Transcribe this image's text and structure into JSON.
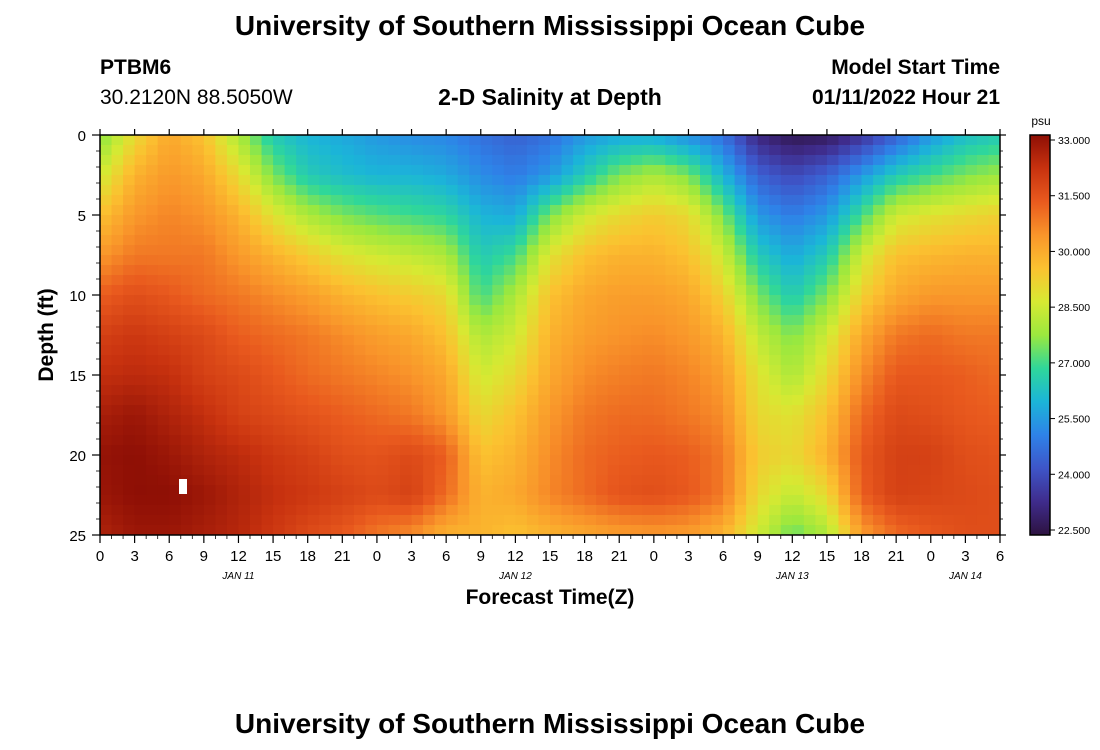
{
  "header": {
    "title": "University of Southern Mississippi Ocean Cube",
    "station_id": "PTBM6",
    "coords": "30.2120N  88.5050W",
    "subtitle": "2-D Salinity at Depth",
    "model_label": "Model Start Time",
    "model_time": "01/11/2022 Hour 21",
    "footer_title": "University of Southern Mississippi Ocean Cube"
  },
  "chart_data": {
    "type": "heatmap",
    "title": "2-D Salinity at Depth",
    "xlabel": "Forecast Time(Z)",
    "ylabel": "Depth (ft)",
    "x_range_hours": [
      0,
      78
    ],
    "x_ticks": [
      {
        "h": 0,
        "label": "0"
      },
      {
        "h": 3,
        "label": "3"
      },
      {
        "h": 6,
        "label": "6"
      },
      {
        "h": 9,
        "label": "9"
      },
      {
        "h": 12,
        "label": "12"
      },
      {
        "h": 15,
        "label": "15"
      },
      {
        "h": 18,
        "label": "18"
      },
      {
        "h": 21,
        "label": "21"
      },
      {
        "h": 24,
        "label": "0"
      },
      {
        "h": 27,
        "label": "3"
      },
      {
        "h": 30,
        "label": "6"
      },
      {
        "h": 33,
        "label": "9"
      },
      {
        "h": 36,
        "label": "12"
      },
      {
        "h": 39,
        "label": "15"
      },
      {
        "h": 42,
        "label": "18"
      },
      {
        "h": 45,
        "label": "21"
      },
      {
        "h": 48,
        "label": "0"
      },
      {
        "h": 51,
        "label": "3"
      },
      {
        "h": 54,
        "label": "6"
      },
      {
        "h": 57,
        "label": "9"
      },
      {
        "h": 60,
        "label": "12"
      },
      {
        "h": 63,
        "label": "15"
      },
      {
        "h": 66,
        "label": "18"
      },
      {
        "h": 69,
        "label": "21"
      },
      {
        "h": 72,
        "label": "0"
      },
      {
        "h": 75,
        "label": "3"
      },
      {
        "h": 78,
        "label": "6"
      }
    ],
    "date_labels": [
      {
        "h": 12,
        "label": "JAN 11"
      },
      {
        "h": 36,
        "label": "JAN 12"
      },
      {
        "h": 60,
        "label": "JAN 13"
      },
      {
        "h": 75,
        "label": "JAN 14"
      }
    ],
    "y_range_ft": [
      0,
      25
    ],
    "y_ticks": [
      0,
      5,
      10,
      15,
      20,
      25
    ],
    "colorbar": {
      "unit": "psu",
      "min": 22.5,
      "max": 33.0,
      "ticks": [
        "33.000",
        "31.500",
        "30.000",
        "28.500",
        "27.000",
        "25.500",
        "24.000",
        "22.500"
      ],
      "stops": [
        "#2d1240",
        "#3f2c8c",
        "#3e55c8",
        "#2e82e8",
        "#1bb5d8",
        "#2fd79a",
        "#9be83e",
        "#d7e932",
        "#fbc230",
        "#f9952a",
        "#e95a1e",
        "#c8320f",
        "#8e0f05"
      ]
    },
    "salinity_keypoints": {
      "times_h": [
        0,
        3,
        6,
        9,
        12,
        15,
        18,
        21,
        24,
        27,
        30,
        33,
        36,
        39,
        42,
        45,
        48,
        51,
        54,
        57,
        60,
        63,
        66,
        69,
        72,
        75,
        78
      ],
      "depths_ft": [
        0,
        2.5,
        5,
        7.5,
        10,
        12.5,
        15,
        17.5,
        20,
        22.5,
        25
      ],
      "rows_psu": [
        [
          27.5,
          29.0,
          30.0,
          29.5,
          28.0,
          26.5,
          26.0,
          25.8,
          25.5,
          25.3,
          25.2,
          24.8,
          24.5,
          24.8,
          25.5,
          25.8,
          25.8,
          25.3,
          24.8,
          23.2,
          22.7,
          22.8,
          23.5,
          24.5,
          25.5,
          26.2,
          26.5
        ],
        [
          28.5,
          29.8,
          30.3,
          30.0,
          29.0,
          27.5,
          26.5,
          26.2,
          26.0,
          26.0,
          25.8,
          25.3,
          25.0,
          25.5,
          26.5,
          27.5,
          28.0,
          27.5,
          26.0,
          24.5,
          24.0,
          24.5,
          25.5,
          26.5,
          27.0,
          27.5,
          27.8
        ],
        [
          29.5,
          30.3,
          30.6,
          30.4,
          29.8,
          28.8,
          28.0,
          27.5,
          27.2,
          27.0,
          26.8,
          26.0,
          25.8,
          27.5,
          28.5,
          29.0,
          29.3,
          29.0,
          27.5,
          25.5,
          25.0,
          25.5,
          27.0,
          28.5,
          28.8,
          29.0,
          29.2
        ],
        [
          30.3,
          30.8,
          30.8,
          30.8,
          30.3,
          29.8,
          29.3,
          28.8,
          28.5,
          28.3,
          28.0,
          26.5,
          27.0,
          28.8,
          29.5,
          29.8,
          29.8,
          29.5,
          28.5,
          26.5,
          25.8,
          26.5,
          28.5,
          29.5,
          29.7,
          29.8,
          29.8
        ],
        [
          31.2,
          31.5,
          31.3,
          31.0,
          30.8,
          30.5,
          30.2,
          29.8,
          29.5,
          29.3,
          29.0,
          27.0,
          28.0,
          29.5,
          30.0,
          30.2,
          30.2,
          30.0,
          29.2,
          27.5,
          26.5,
          27.5,
          29.2,
          30.0,
          30.3,
          30.3,
          30.3
        ],
        [
          31.8,
          32.0,
          31.8,
          31.6,
          31.2,
          31.0,
          30.8,
          30.5,
          30.2,
          30.0,
          29.5,
          28.0,
          28.5,
          29.8,
          30.2,
          30.4,
          30.5,
          30.3,
          29.8,
          28.3,
          27.5,
          28.5,
          30.0,
          30.8,
          31.0,
          30.8,
          30.8
        ],
        [
          32.2,
          32.3,
          32.2,
          31.8,
          31.6,
          31.3,
          31.0,
          30.8,
          30.6,
          30.4,
          30.0,
          28.5,
          29.0,
          30.0,
          30.5,
          30.7,
          30.8,
          30.6,
          30.2,
          28.8,
          28.0,
          29.0,
          30.5,
          31.3,
          31.3,
          31.2,
          31.0
        ],
        [
          32.6,
          32.8,
          32.5,
          32.2,
          31.8,
          31.6,
          31.4,
          31.2,
          31.0,
          30.8,
          30.3,
          29.0,
          29.5,
          30.3,
          30.8,
          31.0,
          31.0,
          30.8,
          30.5,
          29.0,
          28.8,
          29.5,
          31.0,
          31.6,
          31.5,
          31.3,
          31.2
        ],
        [
          32.9,
          33.0,
          32.8,
          32.5,
          32.3,
          32.0,
          31.8,
          31.5,
          31.4,
          31.6,
          31.2,
          29.5,
          29.8,
          30.5,
          31.0,
          31.2,
          31.3,
          31.2,
          30.8,
          29.3,
          29.0,
          29.8,
          31.3,
          31.8,
          31.8,
          31.5,
          31.4
        ],
        [
          32.8,
          33.0,
          33.0,
          32.8,
          32.5,
          32.2,
          32.0,
          31.8,
          31.6,
          31.8,
          31.0,
          29.8,
          30.0,
          30.6,
          31.0,
          31.4,
          31.5,
          31.3,
          30.8,
          29.0,
          28.3,
          29.0,
          31.2,
          31.8,
          31.7,
          31.6,
          31.5
        ],
        [
          32.5,
          32.8,
          32.8,
          32.6,
          32.4,
          32.0,
          31.6,
          31.3,
          30.8,
          30.5,
          29.8,
          29.8,
          29.5,
          29.8,
          30.0,
          30.2,
          30.3,
          30.2,
          29.8,
          28.5,
          27.3,
          28.0,
          30.2,
          31.0,
          31.3,
          31.5,
          31.5
        ]
      ]
    },
    "marker_label": ""
  }
}
